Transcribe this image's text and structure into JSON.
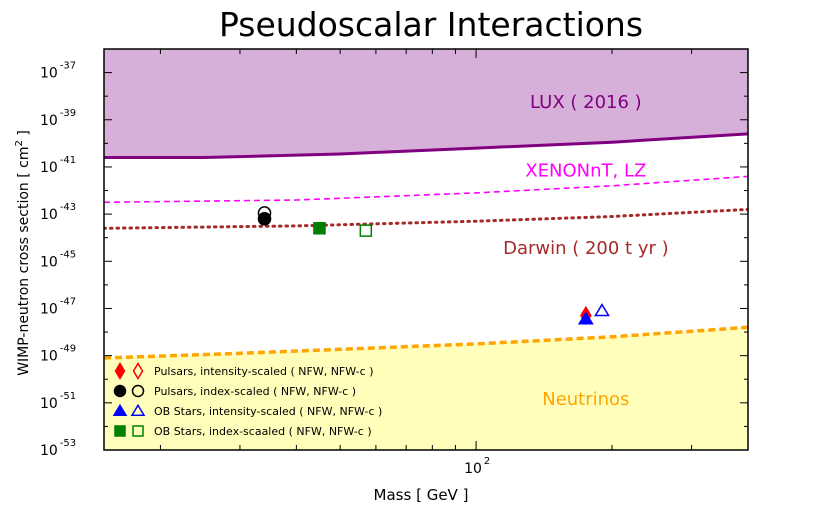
{
  "chart_data": {
    "type": "line",
    "title": "Pseudoscalar Interactions",
    "xlabel": "Mass [ GeV ]",
    "ylabel_pre": "WIMP-neutron cross section [ cm",
    "ylabel_sup": "2",
    "ylabel_post": " ]",
    "x_scale": "log",
    "y_scale": "log10",
    "xlim": [
      15,
      400
    ],
    "ylim_exponent": [
      -53,
      -36
    ],
    "x_ticks": [
      {
        "value": 100,
        "base": "10",
        "exp": "2"
      }
    ],
    "y_ticks": [
      {
        "value": -37,
        "base": "10",
        "exp": "-37"
      },
      {
        "value": -39,
        "base": "10",
        "exp": "-39"
      },
      {
        "value": -41,
        "base": "10",
        "exp": "-41"
      },
      {
        "value": -43,
        "base": "10",
        "exp": "-43"
      },
      {
        "value": -45,
        "base": "10",
        "exp": "-45"
      },
      {
        "value": -47,
        "base": "10",
        "exp": "-47"
      },
      {
        "value": -49,
        "base": "10",
        "exp": "-49"
      },
      {
        "value": -51,
        "base": "10",
        "exp": "-51"
      },
      {
        "value": -53,
        "base": "10",
        "exp": "-53"
      }
    ],
    "series": [
      {
        "name": "LUX ( 2016 )",
        "style": "solid",
        "color": "#800080",
        "fill": "#d7b0d9",
        "fill_to": "top",
        "x": [
          15,
          25,
          50,
          100,
          200,
          400
        ],
        "log_y": [
          -40.6,
          -40.6,
          -40.45,
          -40.2,
          -39.95,
          -39.6
        ]
      },
      {
        "name": "XENONnT,  LZ",
        "style": "dashed",
        "color": "#ff00ff",
        "x": [
          15,
          40,
          100,
          200,
          400
        ],
        "log_y": [
          -42.5,
          -42.4,
          -42.1,
          -41.8,
          -41.4
        ]
      },
      {
        "name": "Darwin ( 200 t yr )",
        "style": "dotted",
        "color": "#a52a2a",
        "x": [
          15,
          40,
          100,
          200,
          400
        ],
        "log_y": [
          -43.6,
          -43.5,
          -43.3,
          -43.1,
          -42.8
        ]
      },
      {
        "name": "Neutrinos",
        "style": "dashed-thick",
        "color": "#ffa500",
        "fill": "#ffffbb",
        "fill_to": "bottom",
        "x": [
          15,
          30,
          100,
          200,
          400
        ],
        "log_y": [
          -49.1,
          -48.9,
          -48.5,
          -48.2,
          -47.8
        ]
      }
    ],
    "points": [
      {
        "name": "pulsar-intensity-scaled-nfw",
        "marker": "diamond",
        "filled": true,
        "color": "#ff0000",
        "x": 175,
        "log_y": -47.3
      },
      {
        "name": "pulsar-index-scaled-nfw",
        "marker": "circle",
        "filled": true,
        "color": "#000000",
        "x": 34,
        "log_y": -43.2
      },
      {
        "name": "pulsar-index-scaled-nfwc",
        "marker": "circle",
        "filled": false,
        "color": "#000000",
        "x": 34,
        "log_y": -42.95
      },
      {
        "name": "ob-intensity-scaled-nfw",
        "marker": "triangle",
        "filled": true,
        "color": "#0000ff",
        "x": 175,
        "log_y": -47.45
      },
      {
        "name": "ob-intensity-scaled-nfwc",
        "marker": "triangle",
        "filled": false,
        "color": "#0000ff",
        "x": 190,
        "log_y": -47.1
      },
      {
        "name": "ob-index-scaled-nfw",
        "marker": "square",
        "filled": true,
        "color": "#008000",
        "x": 45,
        "log_y": -43.6
      },
      {
        "name": "ob-index-scaled-nfwc",
        "marker": "square",
        "filled": false,
        "color": "#008000",
        "x": 57,
        "log_y": -43.7
      }
    ],
    "region_labels": [
      {
        "text": "LUX ( 2016 )",
        "color": "#800080",
        "x": 175,
        "log_y": -38.5
      },
      {
        "text": "XENONnT,  LZ",
        "color": "#ff00ff",
        "x": 175,
        "log_y": -41.4
      },
      {
        "text": "Darwin ( 200 t yr )",
        "color": "#a52a2a",
        "x": 175,
        "log_y": -44.7
      },
      {
        "text": "Neutrinos",
        "color": "#ffa500",
        "x": 175,
        "log_y": -51.1
      }
    ],
    "legend": {
      "position": "bottom-left",
      "entries": [
        {
          "label": "Pulsars, intensity-scaled ( NFW, NFW-c )",
          "marker": "diamond",
          "color": "#ff0000"
        },
        {
          "label": "Pulsars, index-scaled ( NFW, NFW-c )",
          "marker": "circle",
          "color": "#000000"
        },
        {
          "label": "OB Stars, intensity-scaled ( NFW, NFW-c )",
          "marker": "triangle",
          "color": "#0000ff"
        },
        {
          "label": "OB Stars, index-scaaled ( NFW, NFW-c )",
          "marker": "square",
          "color": "#008000"
        }
      ]
    }
  }
}
